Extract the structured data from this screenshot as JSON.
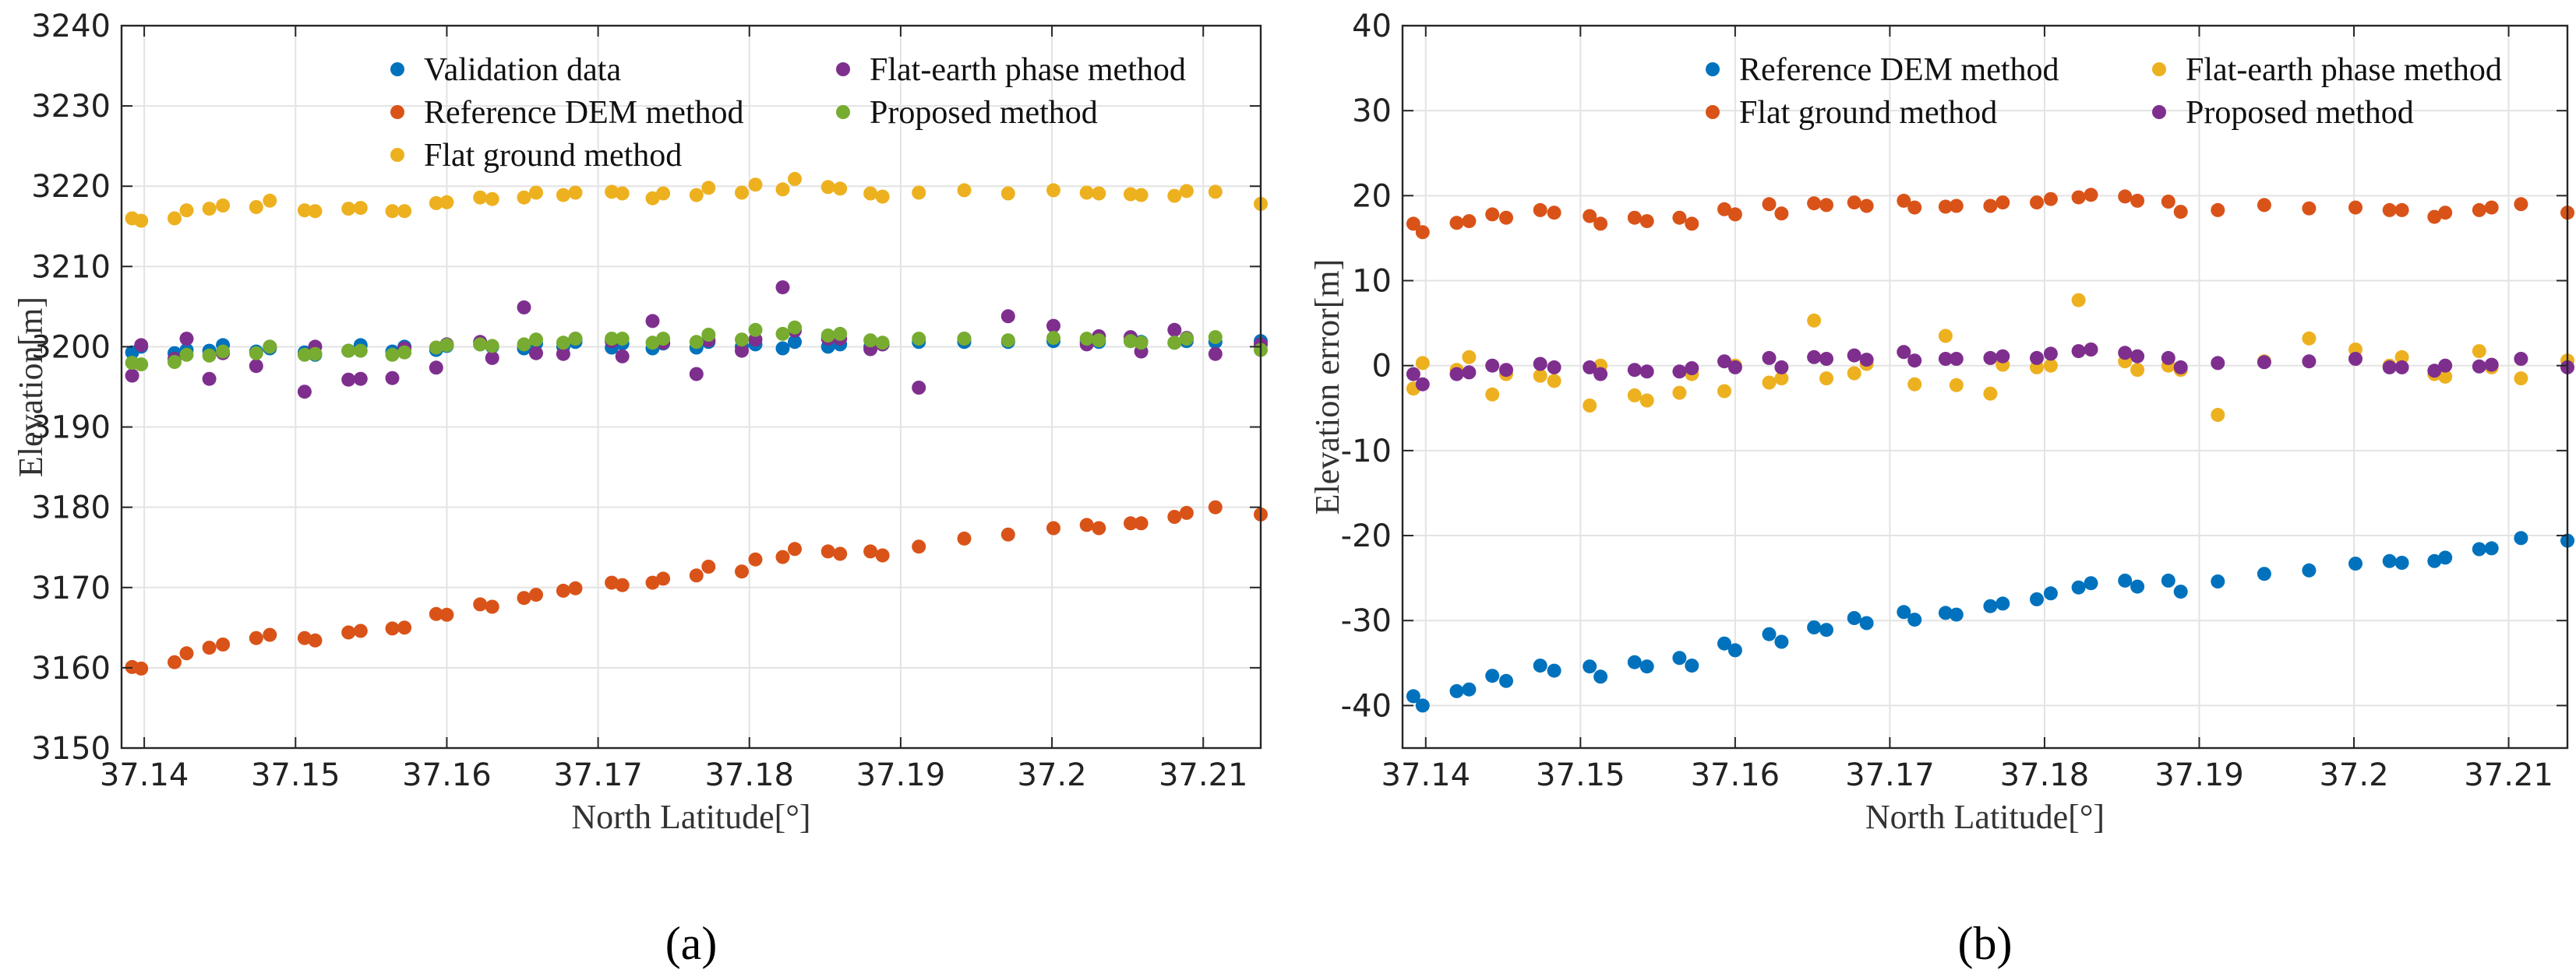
{
  "colors": {
    "blue": "#0072BD",
    "orange": "#D95319",
    "yellow": "#EDB120",
    "purple": "#7E2F8E",
    "green": "#77AC30"
  },
  "chart_data": [
    {
      "type": "scatter",
      "panel_label": "(a)",
      "xlabel": "North Latitude[°]",
      "ylabel": "Elevation[m]",
      "xlim": [
        37.1385,
        37.2138
      ],
      "ylim": [
        3150,
        3240
      ],
      "xticks": [
        37.14,
        37.15,
        37.16,
        37.17,
        37.18,
        37.19,
        37.2,
        37.21
      ],
      "xtick_labels": [
        "37.14",
        "37.15",
        "37.16",
        "37.17",
        "37.18",
        "37.19",
        "37.2",
        "37.21"
      ],
      "yticks": [
        3150,
        3160,
        3170,
        3180,
        3190,
        3200,
        3210,
        3220,
        3230,
        3240
      ],
      "ytick_labels": [
        "3150",
        "3160",
        "3170",
        "3180",
        "3190",
        "3200",
        "3210",
        "3220",
        "3230",
        "3240"
      ],
      "grid": true,
      "legend_position": "top",
      "x": [
        37.1392,
        37.1398,
        37.142,
        37.1428,
        37.1443,
        37.1452,
        37.1474,
        37.1483,
        37.1506,
        37.1513,
        37.1535,
        37.1543,
        37.1564,
        37.1572,
        37.1593,
        37.16,
        37.1622,
        37.163,
        37.1651,
        37.1659,
        37.1677,
        37.1685,
        37.1709,
        37.1716,
        37.1736,
        37.1743,
        37.1765,
        37.1773,
        37.1795,
        37.1804,
        37.1822,
        37.183,
        37.1852,
        37.186,
        37.188,
        37.1888,
        37.1912,
        37.1942,
        37.1971,
        37.2001,
        37.2023,
        37.2031,
        37.2052,
        37.2059,
        37.2081,
        37.2089,
        37.2108,
        37.2138
      ],
      "series": [
        {
          "name": "Validation data",
          "color": "#0072BD",
          "y": [
            3199.3,
            3200.0,
            3199.2,
            3199.6,
            3199.5,
            3200.2,
            3199.4,
            3199.8,
            3199.3,
            3199.0,
            3199.5,
            3200.2,
            3199.4,
            3200.0,
            3199.6,
            3200.1,
            3200.3,
            3200.0,
            3199.8,
            3200.4,
            3200.0,
            3200.6,
            3199.9,
            3200.4,
            3199.8,
            3200.4,
            3199.9,
            3200.6,
            3200.0,
            3200.3,
            3199.8,
            3200.6,
            3200.0,
            3200.3,
            3200.0,
            3200.3,
            3200.6,
            3200.6,
            3200.6,
            3200.7,
            3200.6,
            3200.6,
            3200.7,
            3200.6,
            3200.5,
            3200.7,
            3200.6,
            3200.7
          ]
        },
        {
          "name": "Reference DEM method",
          "color": "#D95319",
          "y": [
            3160.1,
            3159.9,
            3160.7,
            3161.8,
            3162.5,
            3162.9,
            3163.7,
            3164.1,
            3163.7,
            3163.4,
            3164.4,
            3164.6,
            3164.9,
            3165.0,
            3166.7,
            3166.6,
            3167.9,
            3167.6,
            3168.7,
            3169.1,
            3169.6,
            3169.9,
            3170.6,
            3170.3,
            3170.6,
            3171.1,
            3171.5,
            3172.6,
            3172.0,
            3173.5,
            3173.8,
            3174.8,
            3174.5,
            3174.2,
            3174.5,
            3174.0,
            3175.1,
            3176.1,
            3176.6,
            3177.4,
            3177.8,
            3177.4,
            3178.0,
            3178.0,
            3178.8,
            3179.3,
            3180.0,
            3179.1
          ]
        },
        {
          "name": "Flat ground method",
          "color": "#EDB120",
          "y": [
            3216.0,
            3215.7,
            3216.0,
            3217.0,
            3217.2,
            3217.6,
            3217.4,
            3218.2,
            3217.0,
            3216.9,
            3217.2,
            3217.3,
            3216.9,
            3216.9,
            3217.9,
            3218.0,
            3218.6,
            3218.4,
            3218.6,
            3219.2,
            3218.9,
            3219.2,
            3219.3,
            3219.1,
            3218.5,
            3219.1,
            3218.9,
            3219.8,
            3219.2,
            3220.2,
            3219.6,
            3220.9,
            3219.9,
            3219.7,
            3219.1,
            3218.7,
            3219.2,
            3219.5,
            3219.1,
            3219.5,
            3219.2,
            3219.1,
            3219.0,
            3218.9,
            3218.8,
            3219.4,
            3219.3,
            3217.8
          ]
        },
        {
          "name": "Flat-earth phase method",
          "color": "#7E2F8E",
          "y": [
            3196.4,
            3200.2,
            3198.5,
            3201.0,
            3196.0,
            3199.2,
            3197.6,
            3200.0,
            3194.4,
            3200.0,
            3195.9,
            3196.0,
            3196.1,
            3199.8,
            3197.4,
            3200.3,
            3200.6,
            3198.6,
            3204.9,
            3199.2,
            3199.1,
            3201.0,
            3200.7,
            3198.8,
            3203.2,
            3200.5,
            3196.6,
            3200.8,
            3199.5,
            3200.9,
            3207.4,
            3202.0,
            3201.0,
            3201.0,
            3199.7,
            3200.3,
            3194.9,
            3201.0,
            3203.8,
            3202.6,
            3200.3,
            3201.3,
            3201.2,
            3199.4,
            3202.1,
            3201.1,
            3199.1,
            3200.3
          ]
        },
        {
          "name": "Proposed method",
          "color": "#77AC30",
          "y": [
            3198.0,
            3197.8,
            3198.1,
            3199.0,
            3198.9,
            3199.4,
            3199.2,
            3200.0,
            3199.0,
            3199.1,
            3199.5,
            3199.5,
            3199.0,
            3199.3,
            3199.9,
            3200.2,
            3200.3,
            3200.1,
            3200.3,
            3200.9,
            3200.5,
            3201.0,
            3201.0,
            3201.0,
            3200.5,
            3201.0,
            3200.6,
            3201.5,
            3200.9,
            3202.1,
            3201.6,
            3202.4,
            3201.4,
            3201.6,
            3200.8,
            3200.5,
            3201.0,
            3201.0,
            3200.8,
            3201.1,
            3201.0,
            3200.8,
            3200.7,
            3200.5,
            3200.5,
            3201.0,
            3201.2,
            3199.6
          ]
        }
      ]
    },
    {
      "type": "scatter",
      "panel_label": "(b)",
      "xlabel": "North Latitude[°]",
      "ylabel": "Elevation error[m]",
      "xlim": [
        37.1385,
        37.2138
      ],
      "ylim": [
        -45,
        40
      ],
      "xticks": [
        37.14,
        37.15,
        37.16,
        37.17,
        37.18,
        37.19,
        37.2,
        37.21
      ],
      "xtick_labels": [
        "37.14",
        "37.15",
        "37.16",
        "37.17",
        "37.18",
        "37.19",
        "37.2",
        "37.21"
      ],
      "yticks": [
        -40,
        -30,
        -20,
        -10,
        0,
        10,
        20,
        30,
        40
      ],
      "ytick_labels": [
        "-40",
        "-30",
        "-20",
        "-10",
        "0",
        "10",
        "20",
        "30",
        "40"
      ],
      "grid": true,
      "legend_position": "top",
      "x": [
        37.1392,
        37.1398,
        37.142,
        37.1428,
        37.1443,
        37.1452,
        37.1474,
        37.1483,
        37.1506,
        37.1513,
        37.1535,
        37.1543,
        37.1564,
        37.1572,
        37.1593,
        37.16,
        37.1622,
        37.163,
        37.1651,
        37.1659,
        37.1677,
        37.1685,
        37.1709,
        37.1716,
        37.1736,
        37.1743,
        37.1765,
        37.1773,
        37.1795,
        37.1804,
        37.1822,
        37.183,
        37.1852,
        37.186,
        37.188,
        37.1888,
        37.1912,
        37.1942,
        37.1971,
        37.2001,
        37.2023,
        37.2031,
        37.2052,
        37.2059,
        37.2081,
        37.2089,
        37.2108,
        37.2138
      ],
      "series": [
        {
          "name": "Reference DEM method",
          "color": "#0072BD",
          "y": [
            -38.9,
            -40.0,
            -38.3,
            -38.1,
            -36.5,
            -37.1,
            -35.3,
            -35.9,
            -35.4,
            -36.6,
            -34.9,
            -35.4,
            -34.4,
            -35.3,
            -32.7,
            -33.5,
            -31.6,
            -32.5,
            -30.8,
            -31.1,
            -29.7,
            -30.3,
            -29.0,
            -29.9,
            -29.1,
            -29.3,
            -28.3,
            -28.0,
            -27.5,
            -26.8,
            -26.1,
            -25.6,
            -25.3,
            -26.0,
            -25.3,
            -26.6,
            -25.4,
            -24.5,
            -24.1,
            -23.3,
            -23.0,
            -23.2,
            -23.0,
            -22.6,
            -21.6,
            -21.5,
            -20.3,
            -20.6
          ]
        },
        {
          "name": "Flat ground method",
          "color": "#D95319",
          "y": [
            16.7,
            15.7,
            16.8,
            17.0,
            17.8,
            17.4,
            18.3,
            18.0,
            17.6,
            16.7,
            17.4,
            17.0,
            17.4,
            16.7,
            18.4,
            17.8,
            19.0,
            17.9,
            19.1,
            18.9,
            19.2,
            18.8,
            19.4,
            18.6,
            18.7,
            18.8,
            18.8,
            19.2,
            19.2,
            19.6,
            19.8,
            20.1,
            19.9,
            19.4,
            19.3,
            18.1,
            18.3,
            18.9,
            18.5,
            18.6,
            18.3,
            18.3,
            17.5,
            18.0,
            18.3,
            18.6,
            19.0,
            18.0
          ]
        },
        {
          "name": "Flat-earth phase method",
          "color": "#EDB120",
          "y": [
            -2.7,
            0.3,
            -0.5,
            1.0,
            -3.4,
            -1.0,
            -1.2,
            -1.8,
            -4.7,
            0.0,
            -3.5,
            -4.1,
            -3.2,
            -1.0,
            -3.0,
            0.0,
            -2.0,
            -1.5,
            5.3,
            -1.5,
            -0.9,
            0.2,
            1.6,
            -2.2,
            3.5,
            -2.3,
            -3.3,
            0.1,
            -0.2,
            0.0,
            7.7,
            1.9,
            0.5,
            -0.5,
            0.0,
            -0.5,
            -5.8,
            0.5,
            3.2,
            1.9,
            0.0,
            1.0,
            -1.0,
            -1.3,
            1.7,
            -0.2,
            -1.5,
            0.6
          ]
        },
        {
          "name": "Proposed method",
          "color": "#7E2F8E",
          "y": [
            -1.0,
            -2.2,
            -1.0,
            -0.8,
            0.0,
            -0.5,
            0.2,
            -0.2,
            -0.2,
            -1.0,
            -0.5,
            -0.7,
            -0.7,
            -0.3,
            0.5,
            -0.2,
            0.9,
            -0.2,
            1.0,
            0.8,
            1.2,
            0.7,
            1.6,
            0.6,
            0.8,
            0.8,
            0.9,
            1.1,
            0.9,
            1.4,
            1.7,
            1.9,
            1.5,
            1.1,
            0.9,
            -0.2,
            0.3,
            0.4,
            0.5,
            0.8,
            -0.2,
            -0.2,
            -0.6,
            0.0,
            -0.1,
            0.1,
            0.8,
            -0.2
          ]
        }
      ]
    }
  ]
}
